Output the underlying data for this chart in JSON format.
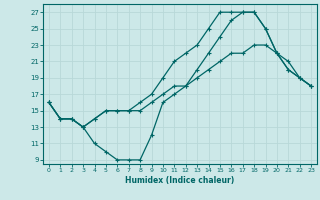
{
  "xlabel": "Humidex (Indice chaleur)",
  "bg_color": "#cce8e8",
  "grid_color": "#b8d8d8",
  "line_color": "#006666",
  "xlim": [
    -0.5,
    23.5
  ],
  "ylim": [
    8.5,
    28
  ],
  "xticks": [
    0,
    1,
    2,
    3,
    4,
    5,
    6,
    7,
    8,
    9,
    10,
    11,
    12,
    13,
    14,
    15,
    16,
    17,
    18,
    19,
    20,
    21,
    22,
    23
  ],
  "yticks": [
    9,
    11,
    13,
    15,
    17,
    19,
    21,
    23,
    25,
    27
  ],
  "line1_x": [
    0,
    1,
    2,
    3,
    4,
    5,
    6,
    7,
    8,
    9,
    10,
    11,
    12,
    13,
    14,
    15,
    16,
    17,
    18,
    19,
    20,
    21,
    22,
    23
  ],
  "line1_y": [
    16,
    14,
    14,
    13,
    14,
    15,
    15,
    15,
    15,
    16,
    17,
    18,
    18,
    19,
    20,
    21,
    22,
    22,
    23,
    23,
    22,
    21,
    19,
    18
  ],
  "line2_x": [
    0,
    1,
    2,
    3,
    4,
    5,
    6,
    7,
    8,
    9,
    10,
    11,
    12,
    13,
    14,
    15,
    16,
    17,
    18,
    19,
    20,
    21,
    22,
    23
  ],
  "line2_y": [
    16,
    14,
    14,
    13,
    11,
    10,
    9,
    9,
    9,
    12,
    16,
    17,
    18,
    20,
    22,
    24,
    26,
    27,
    27,
    25,
    22,
    20,
    19,
    18
  ],
  "line3_x": [
    0,
    1,
    2,
    3,
    4,
    5,
    6,
    7,
    8,
    9,
    10,
    11,
    12,
    13,
    14,
    15,
    16,
    17,
    18,
    19,
    20,
    21,
    22,
    23
  ],
  "line3_y": [
    16,
    14,
    14,
    13,
    14,
    15,
    15,
    15,
    16,
    17,
    19,
    21,
    22,
    23,
    25,
    27,
    27,
    27,
    27,
    25,
    22,
    20,
    19,
    18
  ]
}
